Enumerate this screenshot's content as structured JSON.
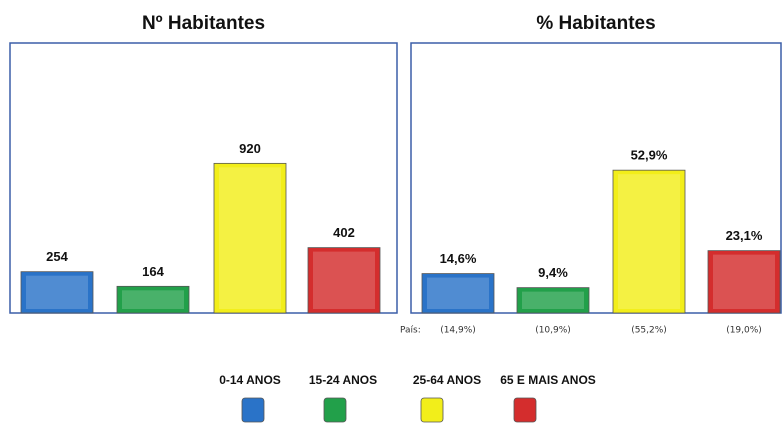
{
  "chart_data": [
    {
      "type": "bar",
      "title": "Nº Habitantes",
      "categories": [
        "0-14 ANOS",
        "15-24 ANOS",
        "25-64 ANOS",
        "65 E MAIS ANOS"
      ],
      "colors": [
        "#2a73c8",
        "#22a04a",
        "#f2ee1a",
        "#d42d2d"
      ],
      "values": [
        254,
        164,
        920,
        402
      ],
      "ylim": [
        0,
        1660
      ]
    },
    {
      "type": "bar",
      "title": "% Habitantes",
      "categories": [
        "0-14 ANOS",
        "15-24 ANOS",
        "25-64 ANOS",
        "65 E MAIS ANOS"
      ],
      "colors": [
        "#2a73c8",
        "#22a04a",
        "#f2ee1a",
        "#d42d2d"
      ],
      "values": [
        14.6,
        9.4,
        52.9,
        23.1
      ],
      "value_labels": [
        "14,6%",
        "9,4%",
        "52,9%",
        "23,1%"
      ],
      "ylim": [
        0,
        100
      ],
      "reference_title": "País:",
      "reference_labels": [
        "(14,9%)",
        "(10,9%)",
        "(55,2%)",
        "(19,0%)"
      ]
    }
  ]
}
